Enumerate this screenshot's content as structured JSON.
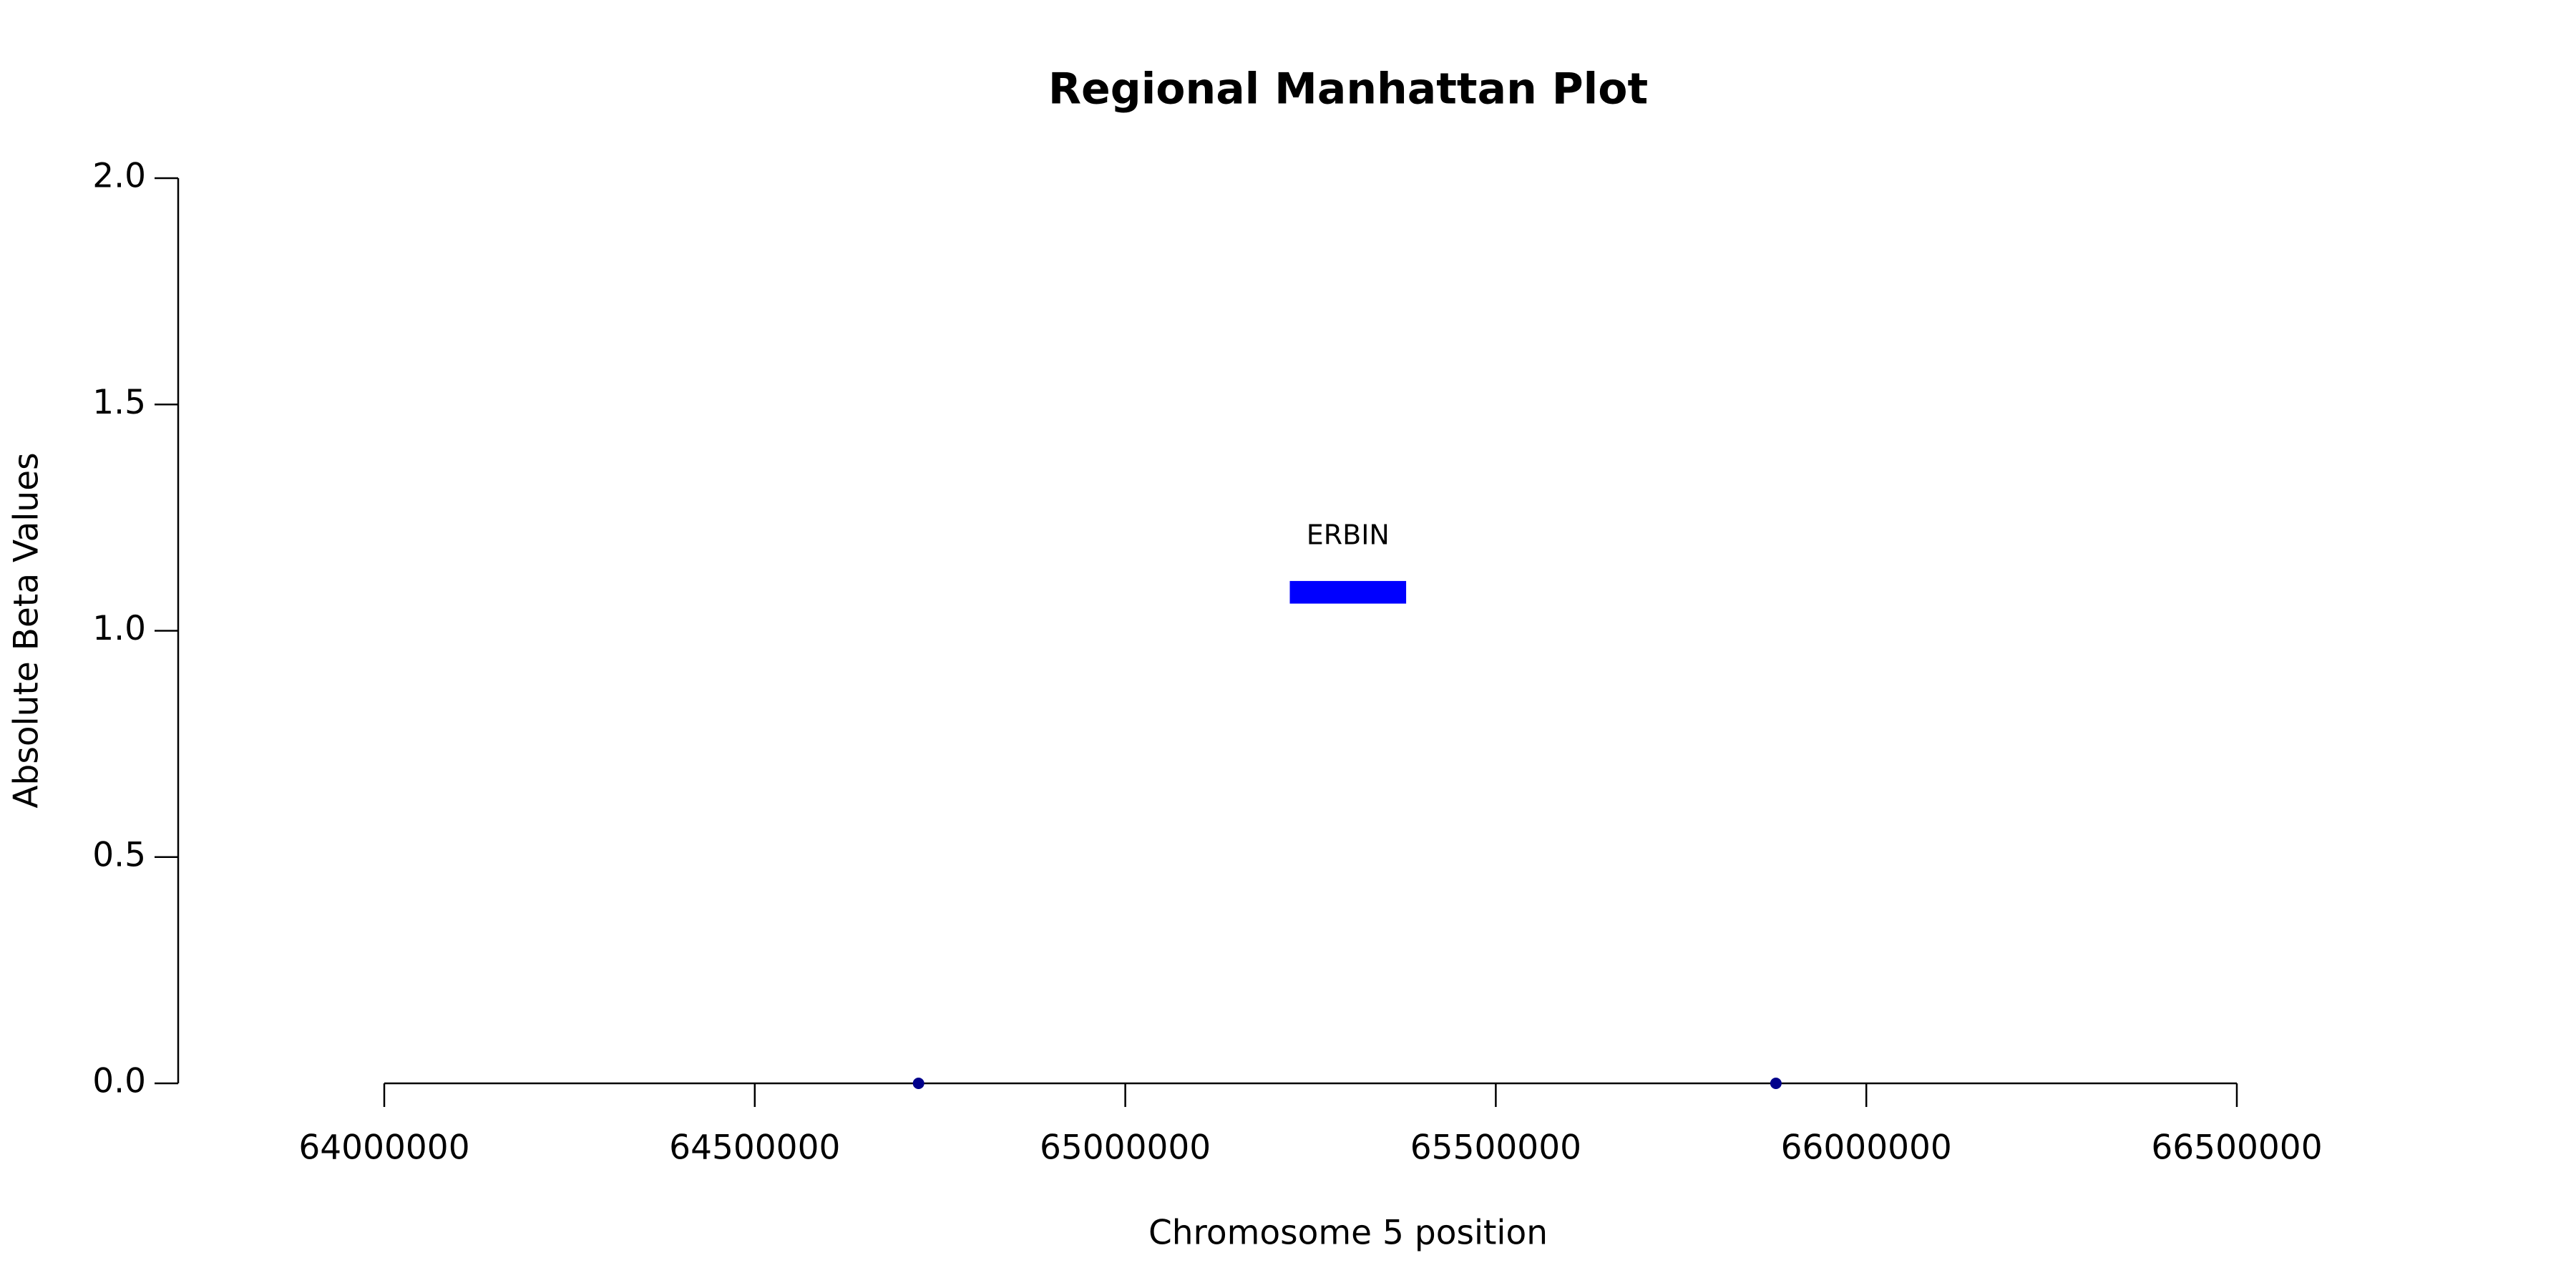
{
  "chart_data": {
    "type": "scatter",
    "title": "Regional Manhattan Plot",
    "x_label": "Chromosome 5 position",
    "y_label": "Absolute Beta Values",
    "xlim": [
      64000000,
      66500000
    ],
    "xticks": [
      64000000,
      64500000,
      65000000,
      65500000,
      66000000,
      66500000
    ],
    "ylim": [
      0,
      2
    ],
    "yticks": [
      {
        "value": 0,
        "label": "0.0"
      },
      {
        "value": 0.5,
        "label": "0.5"
      },
      {
        "value": 1,
        "label": "1.0"
      },
      {
        "value": 1.5,
        "label": "1.5"
      },
      {
        "value": 2,
        "label": "2.0"
      }
    ],
    "series": [
      {
        "color": "#00008b",
        "x": [
          64721000,
          65878000
        ],
        "values": [
          0,
          0
        ]
      }
    ],
    "genes": [
      {
        "name": "ERBIN",
        "start": 65222000,
        "end": 65379000,
        "y_bottom": 1.06,
        "y_top": 1.11,
        "color": "#0000ff"
      }
    ]
  }
}
